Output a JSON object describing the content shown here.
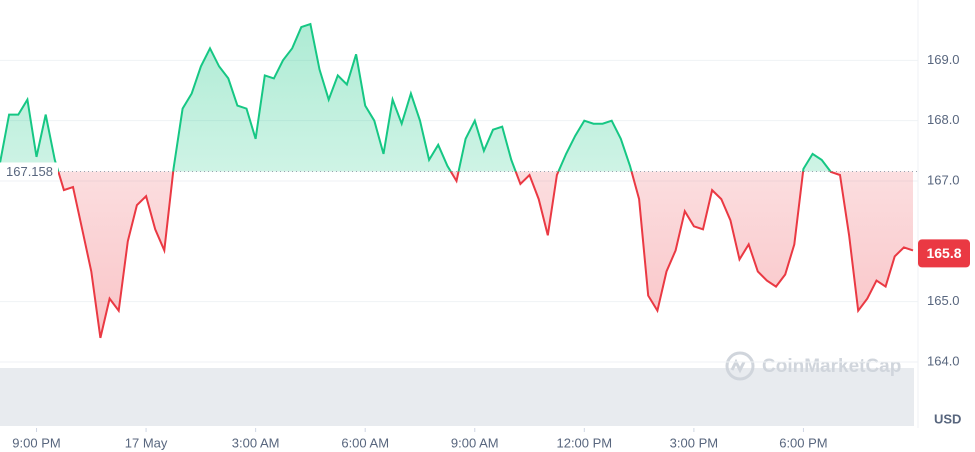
{
  "chart_data": {
    "type": "line",
    "currency": "USD",
    "watermark": "CoinMarketCap",
    "reference_price": 167.158,
    "reference_label": "167.158",
    "last_price": 165.8,
    "last_label": "165.8",
    "up_color": "#16c784",
    "down_color": "#ea3943",
    "values": [
      167.3,
      168.1,
      168.1,
      168.35,
      167.4,
      168.1,
      167.35,
      166.85,
      166.9,
      166.2,
      165.5,
      164.4,
      165.05,
      164.85,
      166.0,
      166.6,
      166.75,
      166.2,
      165.85,
      167.2,
      168.2,
      168.45,
      168.9,
      169.2,
      168.9,
      168.7,
      168.25,
      168.2,
      167.7,
      168.75,
      168.7,
      169.0,
      169.2,
      169.55,
      169.6,
      168.85,
      168.35,
      168.75,
      168.6,
      169.1,
      168.25,
      168.0,
      167.45,
      168.35,
      167.95,
      168.45,
      168.0,
      167.35,
      167.6,
      167.25,
      167.0,
      167.7,
      168.0,
      167.5,
      167.85,
      167.9,
      167.35,
      166.95,
      167.1,
      166.7,
      166.1,
      167.1,
      167.45,
      167.75,
      168.0,
      167.95,
      167.95,
      168.0,
      167.7,
      167.25,
      166.7,
      165.1,
      164.85,
      165.5,
      165.85,
      166.5,
      166.25,
      166.2,
      166.85,
      166.7,
      166.35,
      165.7,
      165.95,
      165.5,
      165.35,
      165.25,
      165.45,
      165.95,
      167.2,
      167.45,
      167.35,
      167.15,
      167.1,
      166.1,
      164.85,
      165.05,
      165.35,
      165.25,
      165.75,
      165.9,
      165.85
    ],
    "xlim": [
      0,
      100
    ],
    "xticks": [
      {
        "value": 4,
        "label": "9:00 PM"
      },
      {
        "value": 16,
        "label": "17 May"
      },
      {
        "value": 28,
        "label": "3:00 AM"
      },
      {
        "value": 40,
        "label": "6:00 AM"
      },
      {
        "value": 52,
        "label": "9:00 AM"
      },
      {
        "value": 64,
        "label": "12:00 PM"
      },
      {
        "value": 76,
        "label": "3:00 PM"
      },
      {
        "value": 88,
        "label": "6:00 PM"
      }
    ],
    "ylim": [
      164,
      170
    ],
    "yticks": [
      {
        "value": 164,
        "label": "164.0"
      },
      {
        "value": 165,
        "label": "165.0"
      },
      {
        "value": 167,
        "label": "167.0"
      },
      {
        "value": 168,
        "label": "168.0"
      },
      {
        "value": 169,
        "label": "169.0"
      }
    ],
    "grid": true
  }
}
